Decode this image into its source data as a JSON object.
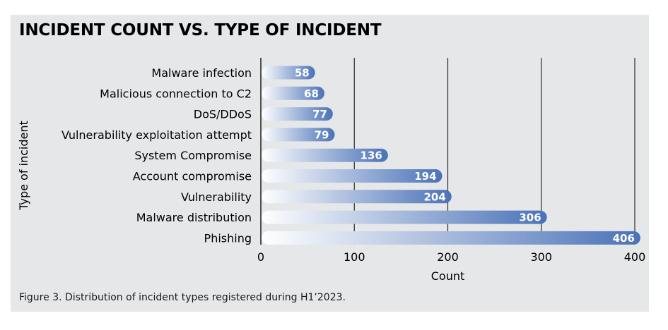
{
  "chart_data": {
    "type": "bar",
    "orientation": "horizontal",
    "title": "INCIDENT COUNT VS. TYPE OF INCIDENT",
    "xlabel": "Count",
    "ylabel": "Type of incident",
    "categories": [
      "Malware infection",
      "Malicious connection to C2",
      "DoS/DDoS",
      "Vulnerability exploitation attempt",
      "System Compromise",
      "Account compromise",
      "Vulnerability",
      "Malware distribution",
      "Phishing"
    ],
    "values": [
      58,
      68,
      77,
      79,
      136,
      194,
      204,
      306,
      406
    ],
    "xlim": [
      0,
      400
    ],
    "xticks": [
      0,
      100,
      200,
      300,
      400
    ],
    "grid": "vertical",
    "legend": "none",
    "colors": {
      "bar_start": "#ffffff",
      "bar_end": "#4a72b8",
      "gridline": "#2b2b2b",
      "background": "#e6e7e8"
    }
  },
  "caption": "Figure 3. Distribution of incident types registered during H1’2023."
}
